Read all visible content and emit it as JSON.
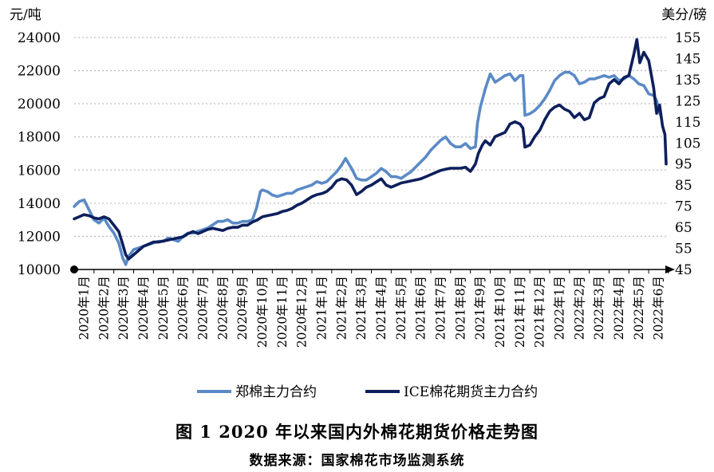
{
  "chart_data": {
    "type": "line",
    "title": "图 1 2020 年以来国内外棉花期货价格走势图",
    "source": "数据来源：国家棉花市场监测系统",
    "left_axis": {
      "label": "元/吨",
      "ylim": [
        10000,
        24000
      ],
      "ticks": [
        "10000",
        "12000",
        "14000",
        "16000",
        "18000",
        "20000",
        "22000",
        "24000"
      ]
    },
    "right_axis": {
      "label": "美分/磅",
      "ylim": [
        45,
        155
      ],
      "ticks": [
        "45",
        "55",
        "65",
        "75",
        "85",
        "95",
        "105",
        "115",
        "125",
        "135",
        "145",
        "155"
      ]
    },
    "x_categories": [
      "2020年1月",
      "2020年2月",
      "2020年3月",
      "2020年4月",
      "2020年5月",
      "2020年6月",
      "2020年7月",
      "2020年8月",
      "2020年9月",
      "2020年10月",
      "2020年11月",
      "2020年12月",
      "2021年1月",
      "2021年2月",
      "2021年3月",
      "2021年4月",
      "2021年5月",
      "2021年6月",
      "2021年7月",
      "2021年8月",
      "2021年9月",
      "2021年10月",
      "2021年11月",
      "2021年12月",
      "2022年1月",
      "2022年2月",
      "2022年3月",
      "2022年4月",
      "2022年5月",
      "2022年6月"
    ],
    "grid": true,
    "legend_position": "bottom",
    "series": [
      {
        "name": "郑棉主力合约",
        "axis": "left",
        "color": "#5b8ac6",
        "points": [
          [
            0.0,
            13800
          ],
          [
            0.25,
            14100
          ],
          [
            0.5,
            14200
          ],
          [
            0.75,
            13600
          ],
          [
            1.0,
            13000
          ],
          [
            1.25,
            12800
          ],
          [
            1.5,
            13100
          ],
          [
            1.75,
            12600
          ],
          [
            2.0,
            12200
          ],
          [
            2.25,
            11600
          ],
          [
            2.45,
            10700
          ],
          [
            2.6,
            10300
          ],
          [
            2.75,
            10800
          ],
          [
            3.0,
            11200
          ],
          [
            3.25,
            11300
          ],
          [
            3.5,
            11400
          ],
          [
            3.75,
            11500
          ],
          [
            4.0,
            11600
          ],
          [
            4.25,
            11700
          ],
          [
            4.5,
            11700
          ],
          [
            4.75,
            11900
          ],
          [
            5.0,
            11800
          ],
          [
            5.25,
            11700
          ],
          [
            5.5,
            12000
          ],
          [
            5.75,
            12200
          ],
          [
            6.0,
            12200
          ],
          [
            6.25,
            12300
          ],
          [
            6.5,
            12400
          ],
          [
            6.75,
            12500
          ],
          [
            7.0,
            12700
          ],
          [
            7.25,
            12900
          ],
          [
            7.5,
            12900
          ],
          [
            7.75,
            13000
          ],
          [
            8.0,
            12800
          ],
          [
            8.25,
            12800
          ],
          [
            8.5,
            12900
          ],
          [
            8.75,
            12900
          ],
          [
            9.0,
            13000
          ],
          [
            9.2,
            13700
          ],
          [
            9.4,
            14700
          ],
          [
            9.5,
            14800
          ],
          [
            9.75,
            14700
          ],
          [
            10.0,
            14500
          ],
          [
            10.25,
            14400
          ],
          [
            10.5,
            14500
          ],
          [
            10.75,
            14600
          ],
          [
            11.0,
            14600
          ],
          [
            11.25,
            14800
          ],
          [
            11.5,
            14900
          ],
          [
            11.75,
            15000
          ],
          [
            12.0,
            15100
          ],
          [
            12.25,
            15300
          ],
          [
            12.5,
            15200
          ],
          [
            12.75,
            15300
          ],
          [
            13.0,
            15600
          ],
          [
            13.25,
            15900
          ],
          [
            13.5,
            16300
          ],
          [
            13.7,
            16700
          ],
          [
            13.85,
            16400
          ],
          [
            14.0,
            16100
          ],
          [
            14.25,
            15500
          ],
          [
            14.5,
            15400
          ],
          [
            14.75,
            15400
          ],
          [
            15.0,
            15600
          ],
          [
            15.25,
            15800
          ],
          [
            15.5,
            16100
          ],
          [
            15.75,
            15900
          ],
          [
            16.0,
            15600
          ],
          [
            16.25,
            15600
          ],
          [
            16.5,
            15500
          ],
          [
            16.75,
            15700
          ],
          [
            17.0,
            15900
          ],
          [
            17.25,
            16200
          ],
          [
            17.5,
            16500
          ],
          [
            17.75,
            16800
          ],
          [
            18.0,
            17200
          ],
          [
            18.25,
            17500
          ],
          [
            18.5,
            17800
          ],
          [
            18.75,
            18000
          ],
          [
            19.0,
            17600
          ],
          [
            19.25,
            17400
          ],
          [
            19.5,
            17400
          ],
          [
            19.75,
            17600
          ],
          [
            20.0,
            17300
          ],
          [
            20.25,
            17400
          ],
          [
            20.35,
            18800
          ],
          [
            20.5,
            19800
          ],
          [
            20.75,
            20900
          ],
          [
            21.0,
            21800
          ],
          [
            21.25,
            21300
          ],
          [
            21.5,
            21500
          ],
          [
            21.75,
            21700
          ],
          [
            22.0,
            21800
          ],
          [
            22.25,
            21400
          ],
          [
            22.5,
            21700
          ],
          [
            22.65,
            21700
          ],
          [
            22.75,
            19300
          ],
          [
            23.0,
            19400
          ],
          [
            23.25,
            19600
          ],
          [
            23.5,
            19900
          ],
          [
            23.75,
            20300
          ],
          [
            24.0,
            20800
          ],
          [
            24.25,
            21400
          ],
          [
            24.5,
            21700
          ],
          [
            24.75,
            21900
          ],
          [
            25.0,
            21900
          ],
          [
            25.25,
            21700
          ],
          [
            25.5,
            21200
          ],
          [
            25.75,
            21300
          ],
          [
            26.0,
            21500
          ],
          [
            26.25,
            21500
          ],
          [
            26.5,
            21600
          ],
          [
            26.75,
            21700
          ],
          [
            27.0,
            21600
          ],
          [
            27.25,
            21700
          ],
          [
            27.5,
            21400
          ],
          [
            27.75,
            21500
          ],
          [
            28.0,
            21700
          ],
          [
            28.25,
            21500
          ],
          [
            28.5,
            21200
          ],
          [
            28.75,
            21100
          ],
          [
            29.0,
            20600
          ],
          [
            29.25,
            20500
          ],
          [
            29.4,
            20200
          ],
          [
            29.5,
            19600
          ],
          [
            29.6,
            19300
          ]
        ]
      },
      {
        "name": "ICE棉花期货主力合约",
        "axis": "right",
        "color": "#0d1f5c",
        "points": [
          [
            0.0,
            69
          ],
          [
            0.25,
            70
          ],
          [
            0.5,
            71
          ],
          [
            0.75,
            70.5
          ],
          [
            1.0,
            69.5
          ],
          [
            1.25,
            69
          ],
          [
            1.5,
            70
          ],
          [
            1.75,
            69
          ],
          [
            2.0,
            66
          ],
          [
            2.25,
            63
          ],
          [
            2.45,
            57
          ],
          [
            2.6,
            52
          ],
          [
            2.75,
            50
          ],
          [
            3.0,
            52
          ],
          [
            3.25,
            54
          ],
          [
            3.5,
            56
          ],
          [
            3.75,
            57
          ],
          [
            4.0,
            58
          ],
          [
            4.25,
            58
          ],
          [
            4.5,
            58.5
          ],
          [
            4.75,
            59
          ],
          [
            5.0,
            59.5
          ],
          [
            5.25,
            60
          ],
          [
            5.5,
            60.5
          ],
          [
            5.75,
            62
          ],
          [
            6.0,
            63
          ],
          [
            6.25,
            62
          ],
          [
            6.5,
            63
          ],
          [
            6.75,
            64
          ],
          [
            7.0,
            64.5
          ],
          [
            7.25,
            64
          ],
          [
            7.5,
            63.5
          ],
          [
            7.75,
            64.5
          ],
          [
            8.0,
            65
          ],
          [
            8.25,
            65
          ],
          [
            8.5,
            66
          ],
          [
            8.75,
            66
          ],
          [
            9.0,
            67.5
          ],
          [
            9.25,
            68.5
          ],
          [
            9.5,
            70
          ],
          [
            9.75,
            70.5
          ],
          [
            10.0,
            71
          ],
          [
            10.25,
            71.5
          ],
          [
            10.5,
            72.5
          ],
          [
            10.75,
            73
          ],
          [
            11.0,
            74
          ],
          [
            11.25,
            75.5
          ],
          [
            11.5,
            76.5
          ],
          [
            11.75,
            78
          ],
          [
            12.0,
            79.5
          ],
          [
            12.25,
            80.5
          ],
          [
            12.5,
            81
          ],
          [
            12.75,
            82
          ],
          [
            13.0,
            84
          ],
          [
            13.25,
            87
          ],
          [
            13.5,
            88
          ],
          [
            13.75,
            87.5
          ],
          [
            14.0,
            85
          ],
          [
            14.25,
            80.5
          ],
          [
            14.5,
            82
          ],
          [
            14.75,
            84
          ],
          [
            15.0,
            85
          ],
          [
            15.25,
            86.5
          ],
          [
            15.5,
            88
          ],
          [
            15.75,
            85
          ],
          [
            16.0,
            84
          ],
          [
            16.25,
            85
          ],
          [
            16.5,
            86
          ],
          [
            16.75,
            86.5
          ],
          [
            17.0,
            87
          ],
          [
            17.25,
            87.5
          ],
          [
            17.5,
            88
          ],
          [
            17.75,
            89
          ],
          [
            18.0,
            90
          ],
          [
            18.25,
            91
          ],
          [
            18.5,
            92
          ],
          [
            18.75,
            92.5
          ],
          [
            19.0,
            93
          ],
          [
            19.25,
            93
          ],
          [
            19.5,
            93
          ],
          [
            19.75,
            93.5
          ],
          [
            20.0,
            91.5
          ],
          [
            20.25,
            95
          ],
          [
            20.4,
            100
          ],
          [
            20.6,
            104
          ],
          [
            20.75,
            106
          ],
          [
            21.0,
            104
          ],
          [
            21.25,
            108
          ],
          [
            21.5,
            109
          ],
          [
            21.75,
            110
          ],
          [
            22.0,
            114
          ],
          [
            22.25,
            115
          ],
          [
            22.5,
            114
          ],
          [
            22.65,
            112
          ],
          [
            22.75,
            103
          ],
          [
            23.0,
            104
          ],
          [
            23.25,
            108
          ],
          [
            23.5,
            111
          ],
          [
            23.75,
            116
          ],
          [
            24.0,
            120
          ],
          [
            24.25,
            122
          ],
          [
            24.5,
            123
          ],
          [
            24.75,
            121
          ],
          [
            25.0,
            120
          ],
          [
            25.25,
            117
          ],
          [
            25.5,
            119
          ],
          [
            25.75,
            116
          ],
          [
            26.0,
            117
          ],
          [
            26.25,
            124
          ],
          [
            26.5,
            126
          ],
          [
            26.75,
            127
          ],
          [
            27.0,
            133
          ],
          [
            27.25,
            135
          ],
          [
            27.5,
            133
          ],
          [
            27.75,
            136
          ],
          [
            28.0,
            137
          ],
          [
            28.25,
            147
          ],
          [
            28.4,
            154
          ],
          [
            28.55,
            143
          ],
          [
            28.75,
            148
          ],
          [
            29.0,
            144
          ],
          [
            29.25,
            131
          ],
          [
            29.4,
            119
          ],
          [
            29.55,
            123
          ],
          [
            29.7,
            113
          ],
          [
            29.82,
            109
          ],
          [
            29.88,
            95
          ]
        ]
      }
    ]
  }
}
